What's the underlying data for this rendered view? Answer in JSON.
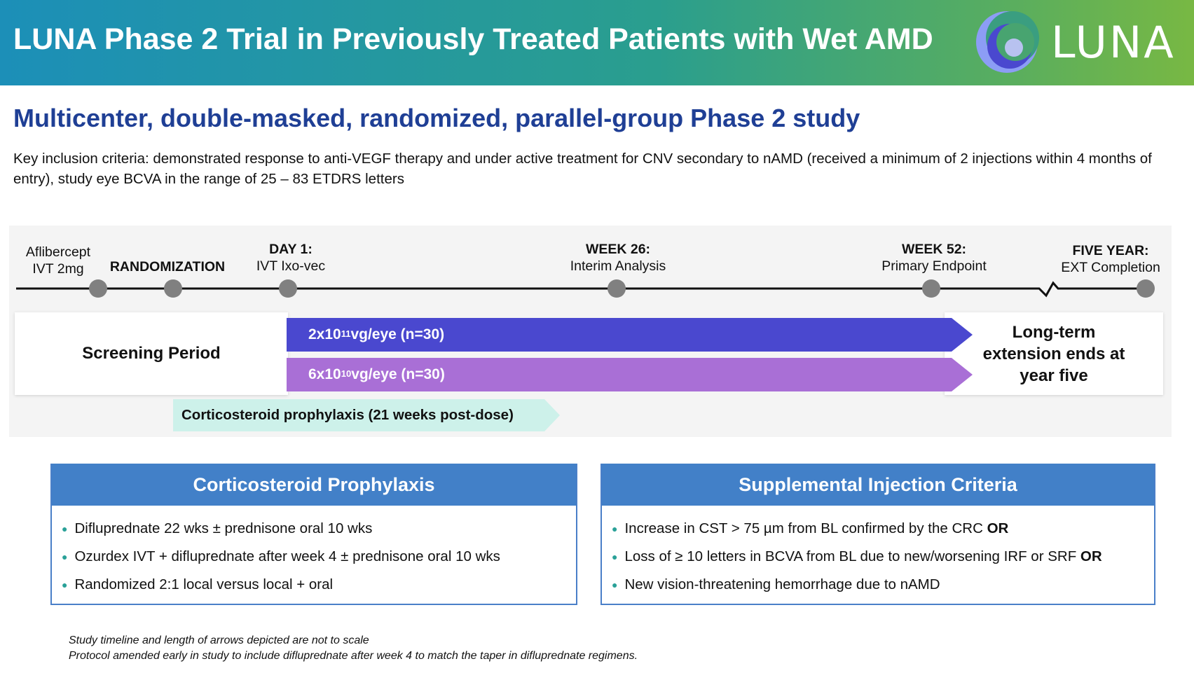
{
  "header": {
    "title": "LUNA Phase 2 Trial in Previously Treated Patients with Wet AMD",
    "logo_text": "LUNA"
  },
  "subtitle": "Multicenter, double-masked, randomized, parallel-group Phase 2 study",
  "criteria": "Key inclusion criteria: demonstrated response to anti-VEGF therapy and under active treatment for CNV secondary to nAMD (received a minimum of 2 injections within 4 months of entry), study eye BCVA in the range of 25 – 83 ETDRS letters",
  "timeline": {
    "milestones": [
      {
        "line1": "Aflibercept",
        "line2": "IVT 2mg"
      },
      {
        "line1": "",
        "line2": "RANDOMIZATION"
      },
      {
        "line1": "DAY 1:",
        "line2": "IVT Ixo-vec"
      },
      {
        "line1": "WEEK 26:",
        "line2": "Interim Analysis"
      },
      {
        "line1": "WEEK 52:",
        "line2": "Primary Endpoint"
      },
      {
        "line1": "FIVE YEAR:",
        "line2": "EXT Completion"
      }
    ],
    "screening": "Screening Period",
    "arm1": {
      "base": "2x10",
      "exp": "11",
      "rest": " vg/eye (n=30)",
      "color": "#4a48cf"
    },
    "arm2": {
      "base": "6x10",
      "exp": "10",
      "rest": " vg/eye (n=30)",
      "color": "#a96fd6"
    },
    "extension": "Long-term extension ends at year five",
    "prophylaxis": "Corticosteroid prophylaxis (21 weeks post-dose)"
  },
  "cards": [
    {
      "title": "Corticosteroid Prophylaxis",
      "items": [
        {
          "text": "Difluprednate 22 wks ± prednisone oral 10 wks",
          "bold": ""
        },
        {
          "text": "Ozurdex IVT + difluprednate after week 4 ± prednisone oral 10 wks",
          "bold": ""
        },
        {
          "text": "Randomized 2:1 local versus local + oral",
          "bold": ""
        }
      ]
    },
    {
      "title": "Supplemental Injection Criteria",
      "items": [
        {
          "text": "Increase in CST > 75 µm from BL confirmed by the CRC ",
          "bold": "OR"
        },
        {
          "text": "Loss of ≥ 10 letters in BCVA from BL due to new/worsening IRF or SRF ",
          "bold": "OR"
        },
        {
          "text": "New vision-threatening hemorrhage due to nAMD",
          "bold": ""
        }
      ]
    }
  ],
  "footnotes": [
    "Study timeline and length of arrows depicted are not to scale",
    "Protocol amended early in study to include difluprednate after week 4 to match the taper in difluprednate regimens."
  ]
}
